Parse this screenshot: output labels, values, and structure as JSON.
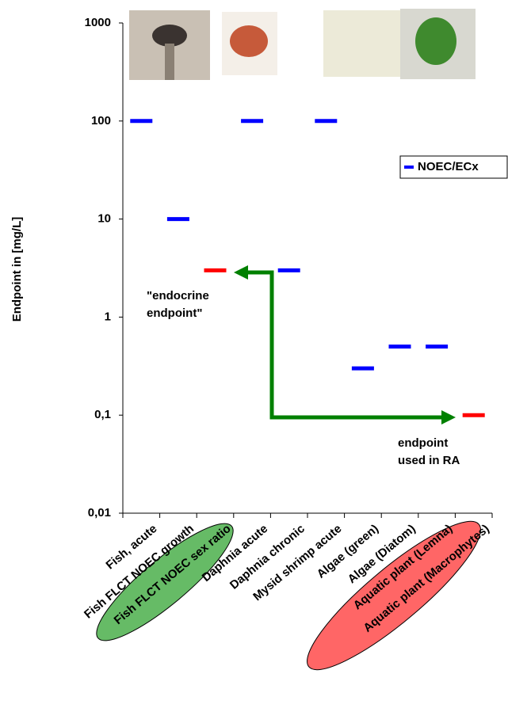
{
  "chart_data": {
    "type": "dash",
    "y_label": "Endpoint in [mg/L]",
    "log_scale": true,
    "categories": [
      "Fish, acute",
      "Fish FLCT NOEC growth",
      "Fish FLCT NOEC sex ratio",
      "Daphnia acute",
      "Daphnia chronic",
      "Mysid shrimp acute",
      "Algae (green)",
      "Algae (Diatom)",
      "Aquatic plant (Lemna)",
      "Aquatic plant (Macrophytes)"
    ],
    "series": [
      {
        "name": "NOEC/ECx",
        "color": "#0000ff",
        "values": [
          100,
          10,
          3,
          100,
          3,
          100,
          0.3,
          0.5,
          0.5,
          0.1
        ],
        "colors": [
          "#0000ff",
          "#0000ff",
          "#ff0000",
          "#0000ff",
          "#0000ff",
          "#0000ff",
          "#0000ff",
          "#0000ff",
          "#0000ff",
          "#ff0000"
        ]
      }
    ],
    "ylim": [
      0.01,
      1000
    ],
    "yticks": [
      {
        "value": 0.01,
        "label": "0,01"
      },
      {
        "value": 0.1,
        "label": "0,1"
      },
      1,
      10,
      100,
      1000
    ],
    "legend": "right",
    "annotations": [
      {
        "lines": [
          "\"endocrine",
          "endpoint\""
        ]
      },
      {
        "lines": [
          "endpoint",
          "used in RA"
        ]
      }
    ]
  }
}
